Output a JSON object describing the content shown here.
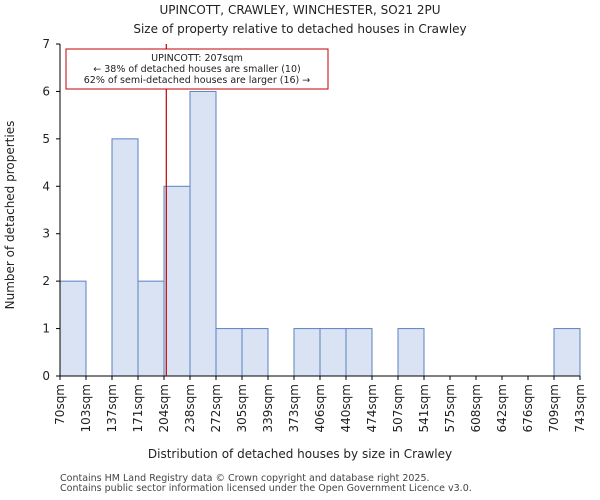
{
  "chart_data": {
    "type": "bar",
    "title_lines": [
      "UPINCOTT, CRAWLEY, WINCHESTER, SO21 2PU",
      "Size of property relative to detached houses in Crawley"
    ],
    "xlabel": "Distribution of detached houses by size in Crawley",
    "ylabel": "Number of detached properties",
    "bin_edges": [
      70,
      103,
      137,
      171,
      204,
      238,
      272,
      305,
      339,
      373,
      406,
      440,
      474,
      507,
      541,
      575,
      608,
      642,
      676,
      709,
      743
    ],
    "tick_labels": [
      "70sqm",
      "103sqm",
      "137sqm",
      "171sqm",
      "204sqm",
      "238sqm",
      "272sqm",
      "305sqm",
      "339sqm",
      "373sqm",
      "406sqm",
      "440sqm",
      "474sqm",
      "507sqm",
      "541sqm",
      "575sqm",
      "608sqm",
      "642sqm",
      "676sqm",
      "709sqm",
      "743sqm"
    ],
    "values": [
      2,
      0,
      5,
      2,
      4,
      6,
      1,
      1,
      0,
      1,
      1,
      1,
      0,
      1,
      0,
      0,
      0,
      0,
      0,
      1
    ],
    "ylim": [
      0,
      7
    ],
    "yticks": [
      0,
      1,
      2,
      3,
      4,
      5,
      6,
      7
    ],
    "highlight_value": 207,
    "colors": {
      "bar_fill": "#dae3f3",
      "bar_edge": "#5a82c2",
      "highlight_line": "#c00000",
      "annot_border": "#c00000"
    },
    "annotation": {
      "line1": "UPINCOTT: 207sqm",
      "line2": "← 38% of detached houses are smaller (10)",
      "line3": "62% of semi-detached houses are larger (16) →"
    }
  },
  "footer": {
    "line1": "Contains HM Land Registry data © Crown copyright and database right 2025.",
    "line2": "Contains public sector information licensed under the Open Government Licence v3.0."
  }
}
